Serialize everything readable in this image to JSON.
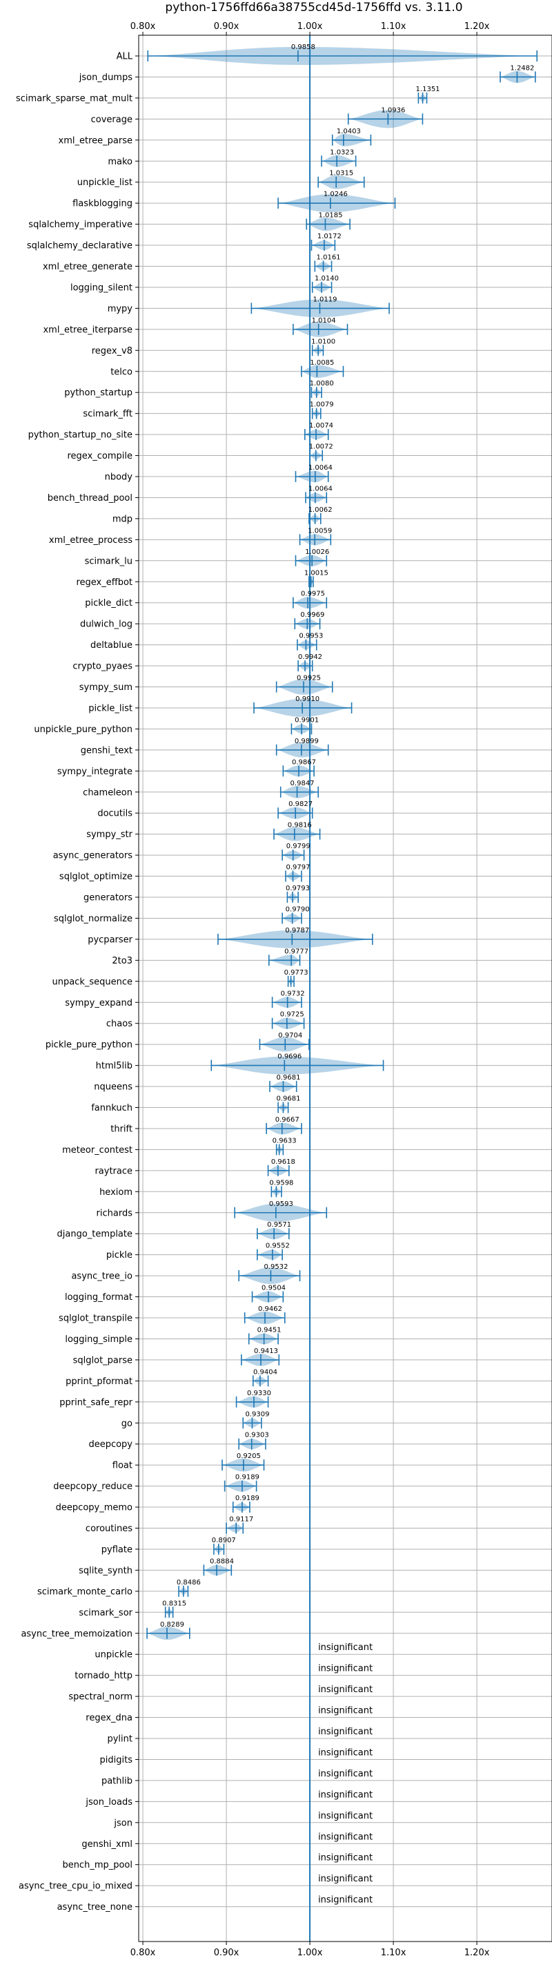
{
  "chart_data": {
    "type": "violin",
    "title": "python-1756ffd66a38755cd45d-1756ffd vs. 3.11.0",
    "xlim": [
      0.795,
      1.29
    ],
    "x_ticks": [
      0.8,
      0.9,
      1.0,
      1.1,
      1.2
    ],
    "x_tick_labels": [
      "0.80x",
      "0.90x",
      "1.00x",
      "1.10x",
      "1.20x"
    ],
    "reference": 1.0,
    "grid": true,
    "insignificant_label": "insignificant",
    "benchmarks": [
      {
        "name": "ALL",
        "mean": 0.9858,
        "label": "0.9858",
        "min": 0.806,
        "max": 1.272
      },
      {
        "name": "json_dumps",
        "mean": 1.2482,
        "label": "1.2482",
        "min": 1.228,
        "max": 1.27
      },
      {
        "name": "scimark_sparse_mat_mult",
        "mean": 1.1351,
        "label": "1.1351",
        "min": 1.13,
        "max": 1.14
      },
      {
        "name": "coverage",
        "mean": 1.0936,
        "label": "1.0936",
        "min": 1.046,
        "max": 1.135
      },
      {
        "name": "xml_etree_parse",
        "mean": 1.0403,
        "label": "1.0403",
        "min": 1.027,
        "max": 1.073
      },
      {
        "name": "mako",
        "mean": 1.0323,
        "label": "1.0323",
        "min": 1.014,
        "max": 1.055
      },
      {
        "name": "unpickle_list",
        "mean": 1.0315,
        "label": "1.0315",
        "min": 1.01,
        "max": 1.065
      },
      {
        "name": "flaskblogging",
        "mean": 1.0246,
        "label": "1.0246",
        "min": 0.962,
        "max": 1.102
      },
      {
        "name": "sqlalchemy_imperative",
        "mean": 1.0185,
        "label": "1.0185",
        "min": 0.996,
        "max": 1.048
      },
      {
        "name": "sqlalchemy_declarative",
        "mean": 1.0172,
        "label": "1.0172",
        "min": 1.002,
        "max": 1.03
      },
      {
        "name": "xml_etree_generate",
        "mean": 1.0161,
        "label": "1.0161",
        "min": 1.006,
        "max": 1.026
      },
      {
        "name": "logging_silent",
        "mean": 1.014,
        "label": "1.0140",
        "min": 1.003,
        "max": 1.026
      },
      {
        "name": "mypy",
        "mean": 1.0119,
        "label": "1.0119",
        "min": 0.93,
        "max": 1.095
      },
      {
        "name": "xml_etree_iterparse",
        "mean": 1.0104,
        "label": "1.0104",
        "min": 0.98,
        "max": 1.045
      },
      {
        "name": "regex_v8",
        "mean": 1.01,
        "label": "1.0100",
        "min": 1.003,
        "max": 1.016
      },
      {
        "name": "telco",
        "mean": 1.0085,
        "label": "1.0085",
        "min": 0.99,
        "max": 1.04
      },
      {
        "name": "python_startup",
        "mean": 1.008,
        "label": "1.0080",
        "min": 1.002,
        "max": 1.014
      },
      {
        "name": "scimark_fft",
        "mean": 1.0079,
        "label": "1.0079",
        "min": 1.003,
        "max": 1.013
      },
      {
        "name": "python_startup_no_site",
        "mean": 1.0074,
        "label": "1.0074",
        "min": 0.994,
        "max": 1.022
      },
      {
        "name": "regex_compile",
        "mean": 1.0072,
        "label": "1.0072",
        "min": 1.0,
        "max": 1.015
      },
      {
        "name": "nbody",
        "mean": 1.0064,
        "label": "1.0064",
        "min": 0.983,
        "max": 1.022
      },
      {
        "name": "bench_thread_pool",
        "mean": 1.0064,
        "label": "1.0064",
        "min": 0.995,
        "max": 1.02
      },
      {
        "name": "mdp",
        "mean": 1.0062,
        "label": "1.0062",
        "min": 0.999,
        "max": 1.013
      },
      {
        "name": "xml_etree_process",
        "mean": 1.0059,
        "label": "1.0059",
        "min": 0.988,
        "max": 1.025
      },
      {
        "name": "scimark_lu",
        "mean": 1.0026,
        "label": "1.0026",
        "min": 0.983,
        "max": 1.02
      },
      {
        "name": "regex_effbot",
        "mean": 1.0015,
        "label": "1.0015",
        "min": 0.999,
        "max": 1.004
      },
      {
        "name": "pickle_dict",
        "mean": 0.9975,
        "label": "0.9975",
        "min": 0.98,
        "max": 1.02
      },
      {
        "name": "dulwich_log",
        "mean": 0.9969,
        "label": "0.9969",
        "min": 0.982,
        "max": 1.012
      },
      {
        "name": "deltablue",
        "mean": 0.9953,
        "label": "0.9953",
        "min": 0.985,
        "max": 1.008
      },
      {
        "name": "crypto_pyaes",
        "mean": 0.9942,
        "label": "0.9942",
        "min": 0.986,
        "max": 1.003
      },
      {
        "name": "sympy_sum",
        "mean": 0.9925,
        "label": "0.9925",
        "min": 0.96,
        "max": 1.027
      },
      {
        "name": "pickle_list",
        "mean": 0.991,
        "label": "0.9910",
        "min": 0.933,
        "max": 1.05
      },
      {
        "name": "unpickle_pure_python",
        "mean": 0.9901,
        "label": "0.9901",
        "min": 0.978,
        "max": 1.002
      },
      {
        "name": "genshi_text",
        "mean": 0.9899,
        "label": "0.9899",
        "min": 0.96,
        "max": 1.022
      },
      {
        "name": "sympy_integrate",
        "mean": 0.9867,
        "label": "0.9867",
        "min": 0.968,
        "max": 1.005
      },
      {
        "name": "chameleon",
        "mean": 0.9847,
        "label": "0.9847",
        "min": 0.965,
        "max": 1.01
      },
      {
        "name": "docutils",
        "mean": 0.9827,
        "label": "0.9827",
        "min": 0.962,
        "max": 1.003
      },
      {
        "name": "sympy_str",
        "mean": 0.9816,
        "label": "0.9816",
        "min": 0.957,
        "max": 1.012
      },
      {
        "name": "async_generators",
        "mean": 0.9799,
        "label": "0.9799",
        "min": 0.967,
        "max": 0.993
      },
      {
        "name": "sqlglot_optimize",
        "mean": 0.9797,
        "label": "0.9797",
        "min": 0.971,
        "max": 0.99
      },
      {
        "name": "generators",
        "mean": 0.9793,
        "label": "0.9793",
        "min": 0.973,
        "max": 0.986
      },
      {
        "name": "sqlglot_normalize",
        "mean": 0.979,
        "label": "0.9790",
        "min": 0.967,
        "max": 0.99
      },
      {
        "name": "pycparser",
        "mean": 0.9787,
        "label": "0.9787",
        "min": 0.89,
        "max": 1.075
      },
      {
        "name": "2to3",
        "mean": 0.9777,
        "label": "0.9777",
        "min": 0.951,
        "max": 0.988
      },
      {
        "name": "unpack_sequence",
        "mean": 0.9773,
        "label": "0.9773",
        "min": 0.974,
        "max": 0.981
      },
      {
        "name": "sympy_expand",
        "mean": 0.9732,
        "label": "0.9732",
        "min": 0.955,
        "max": 0.99
      },
      {
        "name": "chaos",
        "mean": 0.9725,
        "label": "0.9725",
        "min": 0.955,
        "max": 0.993
      },
      {
        "name": "pickle_pure_python",
        "mean": 0.9704,
        "label": "0.9704",
        "min": 0.94,
        "max": 0.999
      },
      {
        "name": "html5lib",
        "mean": 0.9696,
        "label": "0.9696",
        "min": 0.882,
        "max": 1.088
      },
      {
        "name": "nqueens",
        "mean": 0.9681,
        "label": "0.9681",
        "min": 0.952,
        "max": 0.984
      },
      {
        "name": "fannkuch",
        "mean": 0.9681,
        "label": "0.9681",
        "min": 0.962,
        "max": 0.974
      },
      {
        "name": "thrift",
        "mean": 0.9667,
        "label": "0.9667",
        "min": 0.948,
        "max": 0.99
      },
      {
        "name": "meteor_contest",
        "mean": 0.9633,
        "label": "0.9633",
        "min": 0.96,
        "max": 0.968
      },
      {
        "name": "raytrace",
        "mean": 0.9618,
        "label": "0.9618",
        "min": 0.95,
        "max": 0.975
      },
      {
        "name": "hexiom",
        "mean": 0.9598,
        "label": "0.9598",
        "min": 0.954,
        "max": 0.966
      },
      {
        "name": "richards",
        "mean": 0.9593,
        "label": "0.9593",
        "min": 0.91,
        "max": 1.02
      },
      {
        "name": "django_template",
        "mean": 0.9571,
        "label": "0.9571",
        "min": 0.937,
        "max": 0.975
      },
      {
        "name": "pickle",
        "mean": 0.9552,
        "label": "0.9552",
        "min": 0.937,
        "max": 0.967
      },
      {
        "name": "async_tree_io",
        "mean": 0.9532,
        "label": "0.9532",
        "min": 0.915,
        "max": 0.988
      },
      {
        "name": "logging_format",
        "mean": 0.9504,
        "label": "0.9504",
        "min": 0.931,
        "max": 0.968
      },
      {
        "name": "sqlglot_transpile",
        "mean": 0.9462,
        "label": "0.9462",
        "min": 0.922,
        "max": 0.97
      },
      {
        "name": "logging_simple",
        "mean": 0.9451,
        "label": "0.9451",
        "min": 0.927,
        "max": 0.962
      },
      {
        "name": "sqlglot_parse",
        "mean": 0.9413,
        "label": "0.9413",
        "min": 0.918,
        "max": 0.963
      },
      {
        "name": "pprint_pformat",
        "mean": 0.9404,
        "label": "0.9404",
        "min": 0.932,
        "max": 0.95
      },
      {
        "name": "pprint_safe_repr",
        "mean": 0.933,
        "label": "0.9330",
        "min": 0.912,
        "max": 0.95
      },
      {
        "name": "go",
        "mean": 0.9309,
        "label": "0.9309",
        "min": 0.92,
        "max": 0.942
      },
      {
        "name": "deepcopy",
        "mean": 0.9303,
        "label": "0.9303",
        "min": 0.915,
        "max": 0.947
      },
      {
        "name": "float",
        "mean": 0.9205,
        "label": "0.9205",
        "min": 0.895,
        "max": 0.945
      },
      {
        "name": "deepcopy_reduce",
        "mean": 0.9189,
        "label": "0.9189",
        "min": 0.898,
        "max": 0.936
      },
      {
        "name": "deepcopy_memo",
        "mean": 0.9189,
        "label": "0.9189",
        "min": 0.908,
        "max": 0.928
      },
      {
        "name": "coroutines",
        "mean": 0.9117,
        "label": "0.9117",
        "min": 0.9,
        "max": 0.92
      },
      {
        "name": "pyflate",
        "mean": 0.8907,
        "label": "0.8907",
        "min": 0.885,
        "max": 0.897
      },
      {
        "name": "sqlite_synth",
        "mean": 0.8884,
        "label": "0.8884",
        "min": 0.873,
        "max": 0.906
      },
      {
        "name": "scimark_monte_carlo",
        "mean": 0.8486,
        "label": "0.8486",
        "min": 0.843,
        "max": 0.854
      },
      {
        "name": "scimark_sor",
        "mean": 0.8315,
        "label": "0.8315",
        "min": 0.827,
        "max": 0.836
      },
      {
        "name": "async_tree_memoization",
        "mean": 0.8289,
        "label": "0.8289",
        "min": 0.805,
        "max": 0.856
      },
      {
        "name": "unpickle",
        "insignificant": true
      },
      {
        "name": "tornado_http",
        "insignificant": true
      },
      {
        "name": "spectral_norm",
        "insignificant": true
      },
      {
        "name": "regex_dna",
        "insignificant": true
      },
      {
        "name": "pylint",
        "insignificant": true
      },
      {
        "name": "pidigits",
        "insignificant": true
      },
      {
        "name": "pathlib",
        "insignificant": true
      },
      {
        "name": "json_loads",
        "insignificant": true
      },
      {
        "name": "json",
        "insignificant": true
      },
      {
        "name": "genshi_xml",
        "insignificant": true
      },
      {
        "name": "bench_mp_pool",
        "insignificant": true
      },
      {
        "name": "async_tree_cpu_io_mixed",
        "insignificant": true
      },
      {
        "name": "async_tree_none",
        "insignificant": true
      }
    ]
  }
}
